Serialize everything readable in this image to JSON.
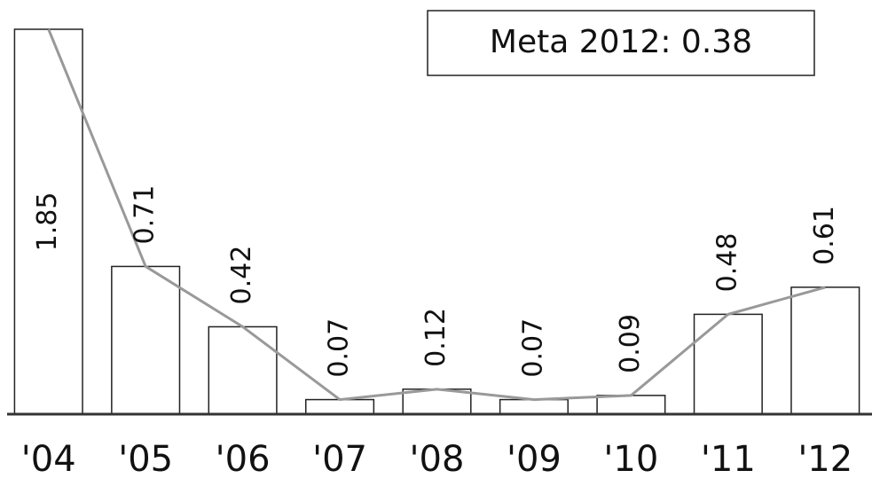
{
  "chart_data": {
    "type": "bar",
    "annotation": "Meta 2012: 0.38",
    "categories": [
      "'04",
      "'05",
      "'06",
      "'07",
      "'08",
      "'09",
      "'10",
      "'11",
      "'12"
    ],
    "values": [
      1.85,
      0.71,
      0.42,
      0.07,
      0.12,
      0.07,
      0.09,
      0.48,
      0.61
    ],
    "color": "#ffffff",
    "line_color": "#999999",
    "ylim": [
      0,
      1.85
    ]
  }
}
